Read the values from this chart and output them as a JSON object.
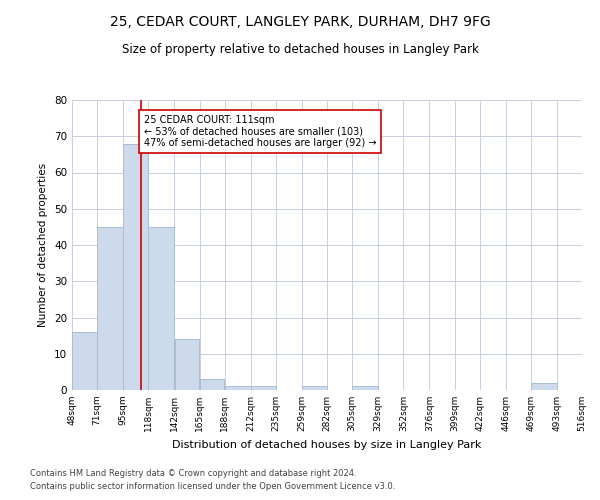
{
  "title1": "25, CEDAR COURT, LANGLEY PARK, DURHAM, DH7 9FG",
  "title2": "Size of property relative to detached houses in Langley Park",
  "xlabel": "Distribution of detached houses by size in Langley Park",
  "ylabel": "Number of detached properties",
  "bar_color": "#ccdaeb",
  "bar_edge_color": "#aabdd6",
  "grid_color": "#c8d0de",
  "ref_line_color": "#cc0000",
  "ref_line_x": 111,
  "annotation_text": "25 CEDAR COURT: 111sqm\n← 53% of detached houses are smaller (103)\n47% of semi-detached houses are larger (92) →",
  "annotation_box_color": "white",
  "annotation_box_edge": "#cc0000",
  "footnote1": "Contains HM Land Registry data © Crown copyright and database right 2024.",
  "footnote2": "Contains public sector information licensed under the Open Government Licence v3.0.",
  "bins": [
    48,
    71,
    95,
    118,
    142,
    165,
    188,
    212,
    235,
    259,
    282,
    305,
    329,
    352,
    376,
    399,
    422,
    446,
    469,
    493,
    516
  ],
  "counts": [
    16,
    45,
    68,
    45,
    14,
    3,
    1,
    1,
    0,
    1,
    0,
    1,
    0,
    0,
    0,
    0,
    0,
    0,
    2,
    0
  ],
  "tick_labels": [
    "48sqm",
    "71sqm",
    "95sqm",
    "118sqm",
    "142sqm",
    "165sqm",
    "188sqm",
    "212sqm",
    "235sqm",
    "259sqm",
    "282sqm",
    "305sqm",
    "329sqm",
    "352sqm",
    "376sqm",
    "399sqm",
    "422sqm",
    "446sqm",
    "469sqm",
    "493sqm",
    "516sqm"
  ],
  "ylim": [
    0,
    80
  ],
  "yticks": [
    0,
    10,
    20,
    30,
    40,
    50,
    60,
    70,
    80
  ],
  "figsize": [
    6.0,
    5.0
  ],
  "dpi": 100
}
